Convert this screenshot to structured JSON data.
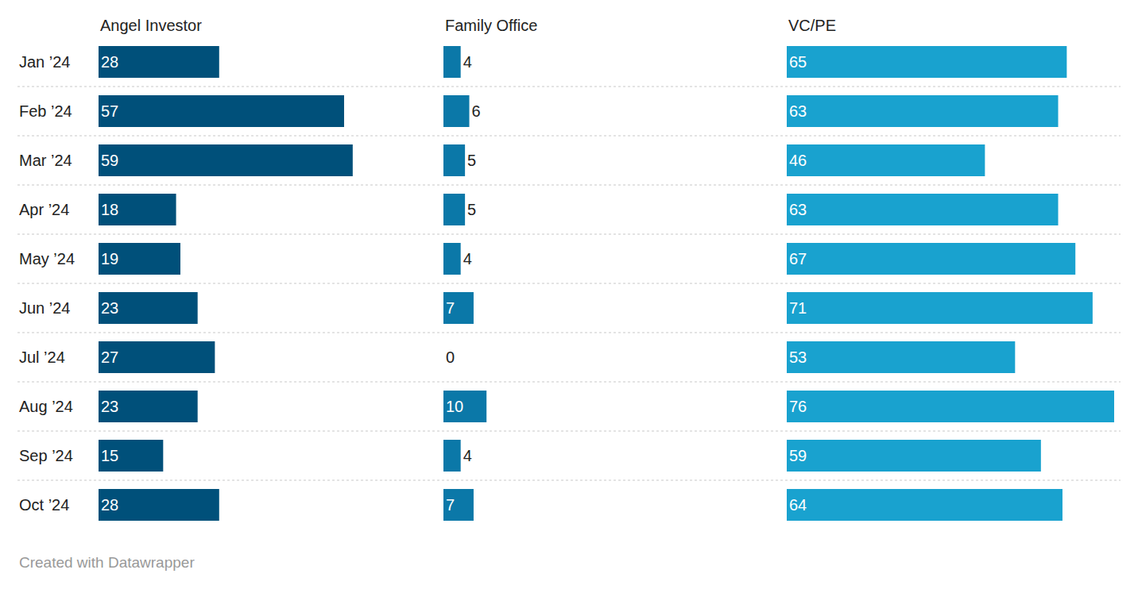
{
  "chart_data": {
    "type": "bar",
    "orientation": "horizontal",
    "categories": [
      "Jan ’24",
      "Feb ’24",
      "Mar ’24",
      "Apr ’24",
      "May ’24",
      "Jun ’24",
      "Jul ’24",
      "Aug ’24",
      "Sep ’24",
      "Oct ’24"
    ],
    "series": [
      {
        "name": "Angel Investor",
        "color": "#00507a",
        "values": [
          28,
          57,
          59,
          18,
          19,
          23,
          27,
          23,
          15,
          28
        ]
      },
      {
        "name": "Family Office",
        "color": "#0b78a8",
        "values": [
          4,
          6,
          5,
          5,
          4,
          7,
          0,
          10,
          4,
          7
        ]
      },
      {
        "name": "VC/PE",
        "color": "#19a2cf",
        "values": [
          65,
          63,
          46,
          63,
          67,
          71,
          53,
          76,
          59,
          64
        ]
      }
    ],
    "xlim": [
      0,
      76
    ],
    "xticks": [],
    "grid": false,
    "data_labels": true,
    "tick_labels": "y",
    "credit": "Created with Datawrapper"
  }
}
